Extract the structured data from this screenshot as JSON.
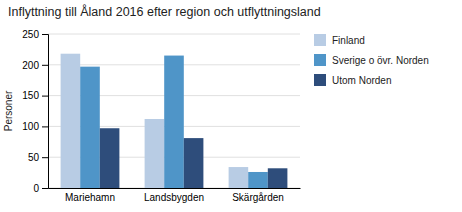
{
  "chart_data": {
    "type": "bar",
    "title": "Inflyttning till Åland 2016 efter region och utflyttningsland",
    "ylabel": "Personer",
    "categories": [
      "Mariehamn",
      "Landsbygden",
      "Skärgården"
    ],
    "series": [
      {
        "name": "Finland",
        "color": "#b8cce4",
        "values": [
          218,
          112,
          34
        ]
      },
      {
        "name": "Sverige o övr. Norden",
        "color": "#4f95c8",
        "values": [
          197,
          215,
          26
        ]
      },
      {
        "name": "Utom Norden",
        "color": "#2e4d7b",
        "values": [
          97,
          81,
          32
        ]
      }
    ],
    "ylim": [
      0,
      250
    ],
    "yticks": [
      0,
      50,
      100,
      150,
      200,
      250
    ],
    "grid": true,
    "legend": "right"
  }
}
